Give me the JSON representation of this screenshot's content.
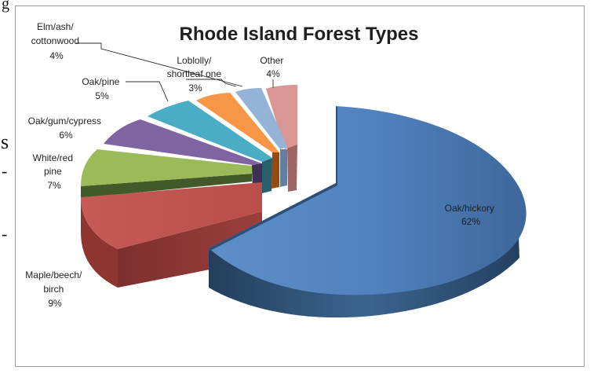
{
  "page": {
    "left_fragment_text": [
      "g",
      "s",
      "-",
      "-"
    ]
  },
  "chart_data": {
    "type": "pie",
    "title": "Rhode Island Forest Types",
    "slices": [
      {
        "label": "Oak/hickory",
        "value": 62,
        "display_value": "62%",
        "color": "#4f81bd"
      },
      {
        "label": "Maple/beech/birch",
        "value": 9,
        "display_value": "9%",
        "color": "#c0504d"
      },
      {
        "label": "White/red pine",
        "value": 7,
        "display_value": "7%",
        "color": "#9bbb59"
      },
      {
        "label": "Oak/gum/cypress",
        "value": 6,
        "display_value": "6%",
        "color": "#8064a2"
      },
      {
        "label": "Oak/pine",
        "value": 5,
        "display_value": "5%",
        "color": "#4bacc6"
      },
      {
        "label": "Loblolly/shortleaf one",
        "value": 3,
        "display_value": "3%",
        "color": "#f79646"
      },
      {
        "label": "Elm/ash/cottonwood",
        "value": 4,
        "display_value": "4%",
        "color": "#95b3d7"
      },
      {
        "label": "Other",
        "value": 4,
        "display_value": "4%",
        "color": "#d99694"
      }
    ],
    "label_lines": [
      [
        "Oak/hickory",
        "62%"
      ],
      [
        "Maple/beech/",
        "birch",
        "9%"
      ],
      [
        "White/red",
        "pine",
        "7%"
      ],
      [
        "Oak/gum/cypress",
        "6%"
      ],
      [
        "Oak/pine",
        "5%"
      ],
      [
        "Loblolly/",
        "shortleaf one",
        "3%"
      ],
      [
        "Elm/ash/",
        "cottonwood",
        "4%"
      ],
      [
        "Other",
        "4%"
      ]
    ],
    "style": "3d-exploded-pie"
  }
}
